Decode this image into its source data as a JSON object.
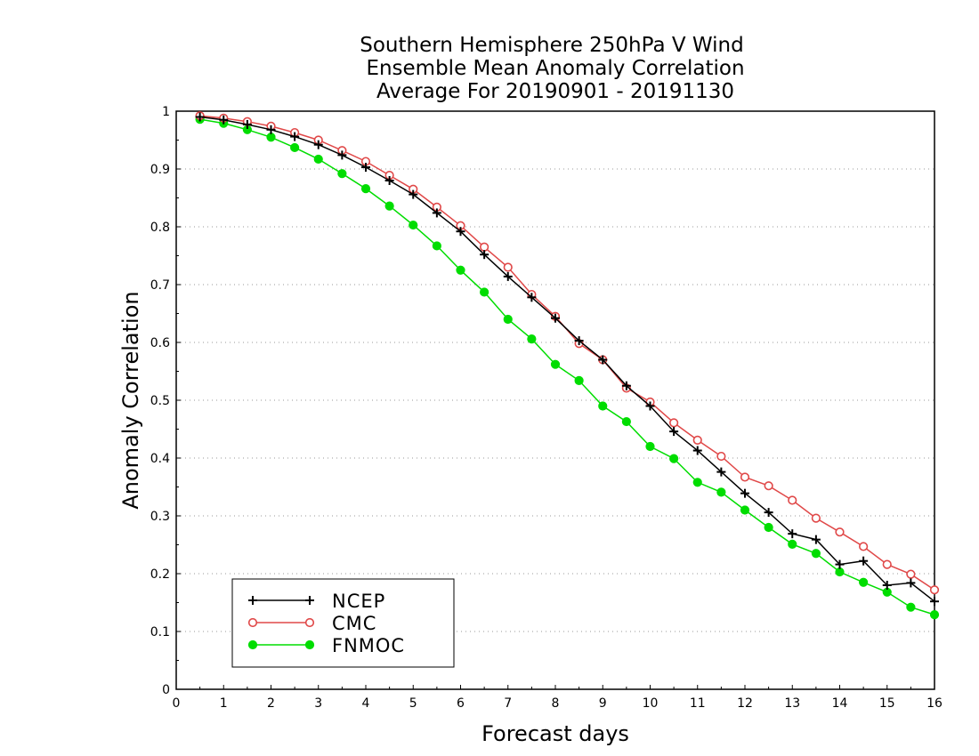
{
  "chart_data": {
    "type": "line",
    "title": [
      "Southern Hemisphere 250hPa V Wind",
      "Ensemble Mean Anomaly Correlation",
      "Average For 20190901 - 20191130"
    ],
    "xlabel": "Forecast days",
    "ylabel": "Anomaly Correlation",
    "xlim": [
      0,
      16
    ],
    "ylim": [
      0,
      1
    ],
    "x_ticks": [
      "0",
      "1",
      "2",
      "3",
      "4",
      "5",
      "6",
      "7",
      "8",
      "9",
      "10",
      "11",
      "12",
      "13",
      "14",
      "15",
      "16"
    ],
    "y_ticks": [
      "0",
      "0.1",
      "0.2",
      "0.3",
      "0.4",
      "0.5",
      "0.6",
      "0.7",
      "0.8",
      "0.9",
      "1"
    ],
    "grid": "horizontal dotted",
    "legend_position": "bottom-left",
    "x": [
      0.5,
      1,
      1.5,
      2,
      2.5,
      3,
      3.5,
      4,
      4.5,
      5,
      5.5,
      6,
      6.5,
      7,
      7.5,
      8,
      8.5,
      9,
      9.5,
      10,
      10.5,
      11,
      11.5,
      12,
      12.5,
      13,
      13.5,
      14,
      14.5,
      15,
      15.5,
      16
    ],
    "series": [
      {
        "name": "NCEP",
        "color": "#000000",
        "marker": "plus",
        "values": [
          0.99,
          0.985,
          0.977,
          0.968,
          0.956,
          0.942,
          0.924,
          0.903,
          0.88,
          0.856,
          0.824,
          0.792,
          0.752,
          0.714,
          0.678,
          0.642,
          0.603,
          0.57,
          0.525,
          0.49,
          0.446,
          0.413,
          0.376,
          0.339,
          0.306,
          0.269,
          0.259,
          0.216,
          0.222,
          0.18,
          0.184,
          0.152
        ]
      },
      {
        "name": "CMC",
        "color": "#e04848",
        "marker": "open-circle",
        "values": [
          0.992,
          0.988,
          0.982,
          0.974,
          0.963,
          0.95,
          0.932,
          0.913,
          0.889,
          0.865,
          0.834,
          0.802,
          0.765,
          0.73,
          0.683,
          0.645,
          0.598,
          0.57,
          0.521,
          0.497,
          0.461,
          0.431,
          0.403,
          0.367,
          0.352,
          0.327,
          0.296,
          0.272,
          0.247,
          0.216,
          0.199,
          0.172
        ]
      },
      {
        "name": "FNMOC",
        "color": "#00dd00",
        "marker": "filled-circle",
        "values": [
          0.986,
          0.979,
          0.968,
          0.955,
          0.937,
          0.917,
          0.892,
          0.866,
          0.836,
          0.803,
          0.767,
          0.725,
          0.687,
          0.64,
          0.606,
          0.562,
          0.534,
          0.49,
          0.463,
          0.42,
          0.399,
          0.358,
          0.341,
          0.31,
          0.28,
          0.251,
          0.235,
          0.203,
          0.185,
          0.168,
          0.142,
          0.129
        ]
      }
    ]
  }
}
